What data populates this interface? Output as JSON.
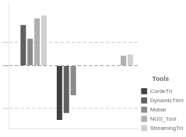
{
  "chart_data": {
    "type": "bar",
    "categories": [
      null,
      null,
      null
    ],
    "series": [
      {
        "name": "CordeTri",
        "color": "#404040",
        "values": [
          null,
          -2.0,
          null
        ]
      },
      {
        "name": "DynamicTrim",
        "color": "#606060",
        "values": [
          1.5,
          -1.75,
          null
        ]
      },
      {
        "name": "Mobar",
        "color": "#8a8a8a",
        "values": [
          1.0,
          -1.1,
          null
        ]
      },
      {
        "name": "NGS_Tool",
        "color": "#b0b0b0",
        "values": [
          1.75,
          null,
          0.38
        ]
      },
      {
        "name": "StreamingTrim",
        "color": "#d0d0d0",
        "values": [
          1.85,
          null,
          0.42
        ]
      }
    ],
    "legend_title": "Tools",
    "legend": "lower right",
    "ylim": [
      -2.3,
      2.3
    ],
    "yticks": [
      -1.55,
      0,
      0.85
    ],
    "grid": true,
    "tick_labels": false
  }
}
